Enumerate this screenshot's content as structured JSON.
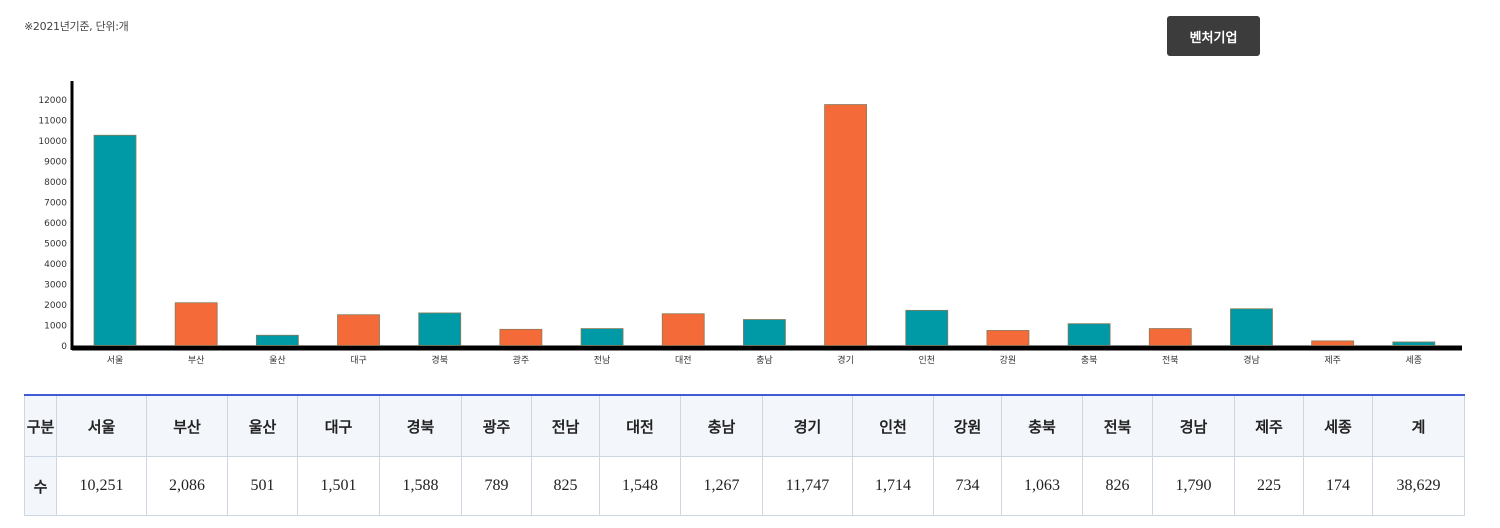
{
  "note": "※2021년기준, 단위:개",
  "tab": {
    "label": "벤처기업"
  },
  "colors": {
    "teal": "#009aa6",
    "orange": "#f46a38",
    "axis": "#000000",
    "button_bg": "#3c3c3c",
    "table_top_border": "#3f5bd6"
  },
  "chart_data": {
    "type": "bar",
    "categories": [
      "서울",
      "부산",
      "울산",
      "대구",
      "경북",
      "광주",
      "전남",
      "대전",
      "충남",
      "경기",
      "인천",
      "강원",
      "충북",
      "전북",
      "경남",
      "제주",
      "세종"
    ],
    "values": [
      10251,
      2086,
      501,
      1501,
      1588,
      789,
      825,
      1548,
      1267,
      11747,
      1714,
      734,
      1063,
      826,
      1790,
      225,
      174
    ],
    "bar_colors": [
      "teal",
      "orange",
      "teal",
      "orange",
      "teal",
      "orange",
      "teal",
      "orange",
      "teal",
      "orange",
      "teal",
      "orange",
      "teal",
      "orange",
      "teal",
      "orange",
      "teal"
    ],
    "yticks": [
      0,
      1000,
      2000,
      3000,
      4000,
      5000,
      6000,
      7000,
      8000,
      9000,
      10000,
      11000,
      12000
    ],
    "ylim": [
      0,
      12000
    ],
    "grid": false,
    "legend": "none"
  },
  "table": {
    "headers": [
      "구분",
      "서울",
      "부산",
      "울산",
      "대구",
      "경북",
      "광주",
      "전남",
      "대전",
      "충남",
      "경기",
      "인천",
      "강원",
      "충북",
      "전북",
      "경남",
      "제주",
      "세종",
      "계"
    ],
    "row": [
      "수",
      "10,251",
      "2,086",
      "501",
      "1,501",
      "1,588",
      "789",
      "825",
      "1,548",
      "1,267",
      "11,747",
      "1,714",
      "734",
      "1,063",
      "826",
      "1,790",
      "225",
      "174",
      "38,629"
    ]
  }
}
